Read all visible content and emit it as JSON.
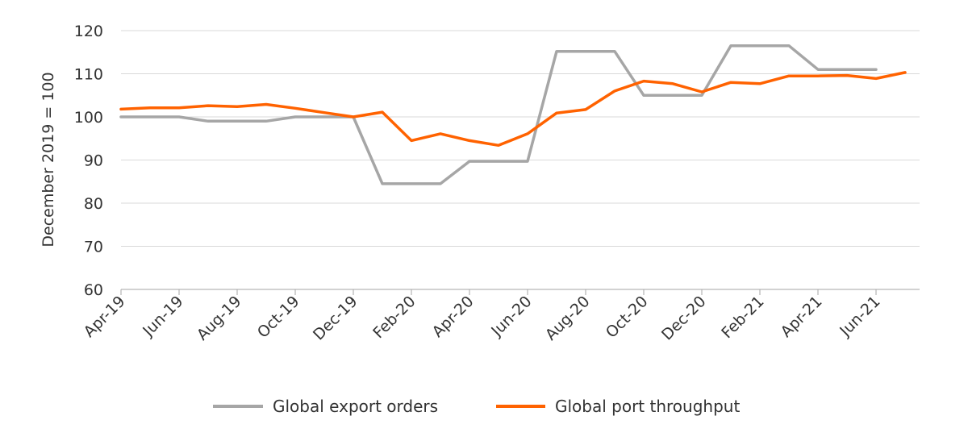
{
  "chart_data": {
    "type": "line",
    "ylabel": "December 2019 = 100",
    "ylim": [
      60,
      120
    ],
    "yticks": [
      60,
      70,
      80,
      90,
      100,
      110,
      120
    ],
    "grid": "horizontal",
    "legend_position": "bottom",
    "x": [
      "Apr-19",
      "May-19",
      "Jun-19",
      "Jul-19",
      "Aug-19",
      "Sep-19",
      "Oct-19",
      "Nov-19",
      "Dec-19",
      "Jan-20",
      "Feb-20",
      "Mar-20",
      "Apr-20",
      "May-20",
      "Jun-20",
      "Jul-20",
      "Aug-20",
      "Sep-20",
      "Oct-20",
      "Nov-20",
      "Dec-20",
      "Jan-21",
      "Feb-21",
      "Mar-21",
      "Apr-21",
      "May-21",
      "Jun-21",
      "Jul-21"
    ],
    "xtick_labels": [
      "Apr-19",
      "Jun-19",
      "Aug-19",
      "Oct-19",
      "Dec-19",
      "Feb-20",
      "Apr-20",
      "Jun-20",
      "Aug-20",
      "Oct-20",
      "Dec-20",
      "Feb-21",
      "Apr-21",
      "Jun-21"
    ],
    "series": [
      {
        "name": "Global export orders",
        "color": "#a6a6a6",
        "values": [
          100,
          100,
          100,
          99,
          99,
          99,
          100,
          100,
          100,
          84.5,
          84.5,
          84.5,
          89.7,
          89.7,
          89.7,
          115.2,
          115.2,
          115.2,
          105,
          105,
          105,
          116.5,
          116.5,
          116.5,
          111,
          111,
          111,
          null
        ]
      },
      {
        "name": "Global port throughput",
        "color": "#ff6200",
        "values": [
          101.8,
          102.1,
          102.1,
          102.6,
          102.4,
          102.9,
          102,
          101,
          100,
          101.1,
          94.5,
          96.1,
          94.5,
          93.4,
          96.1,
          100.9,
          101.7,
          106,
          108.3,
          107.7,
          105.8,
          108,
          107.7,
          109.5,
          109.5,
          109.6,
          108.9,
          110.3
        ]
      }
    ]
  }
}
